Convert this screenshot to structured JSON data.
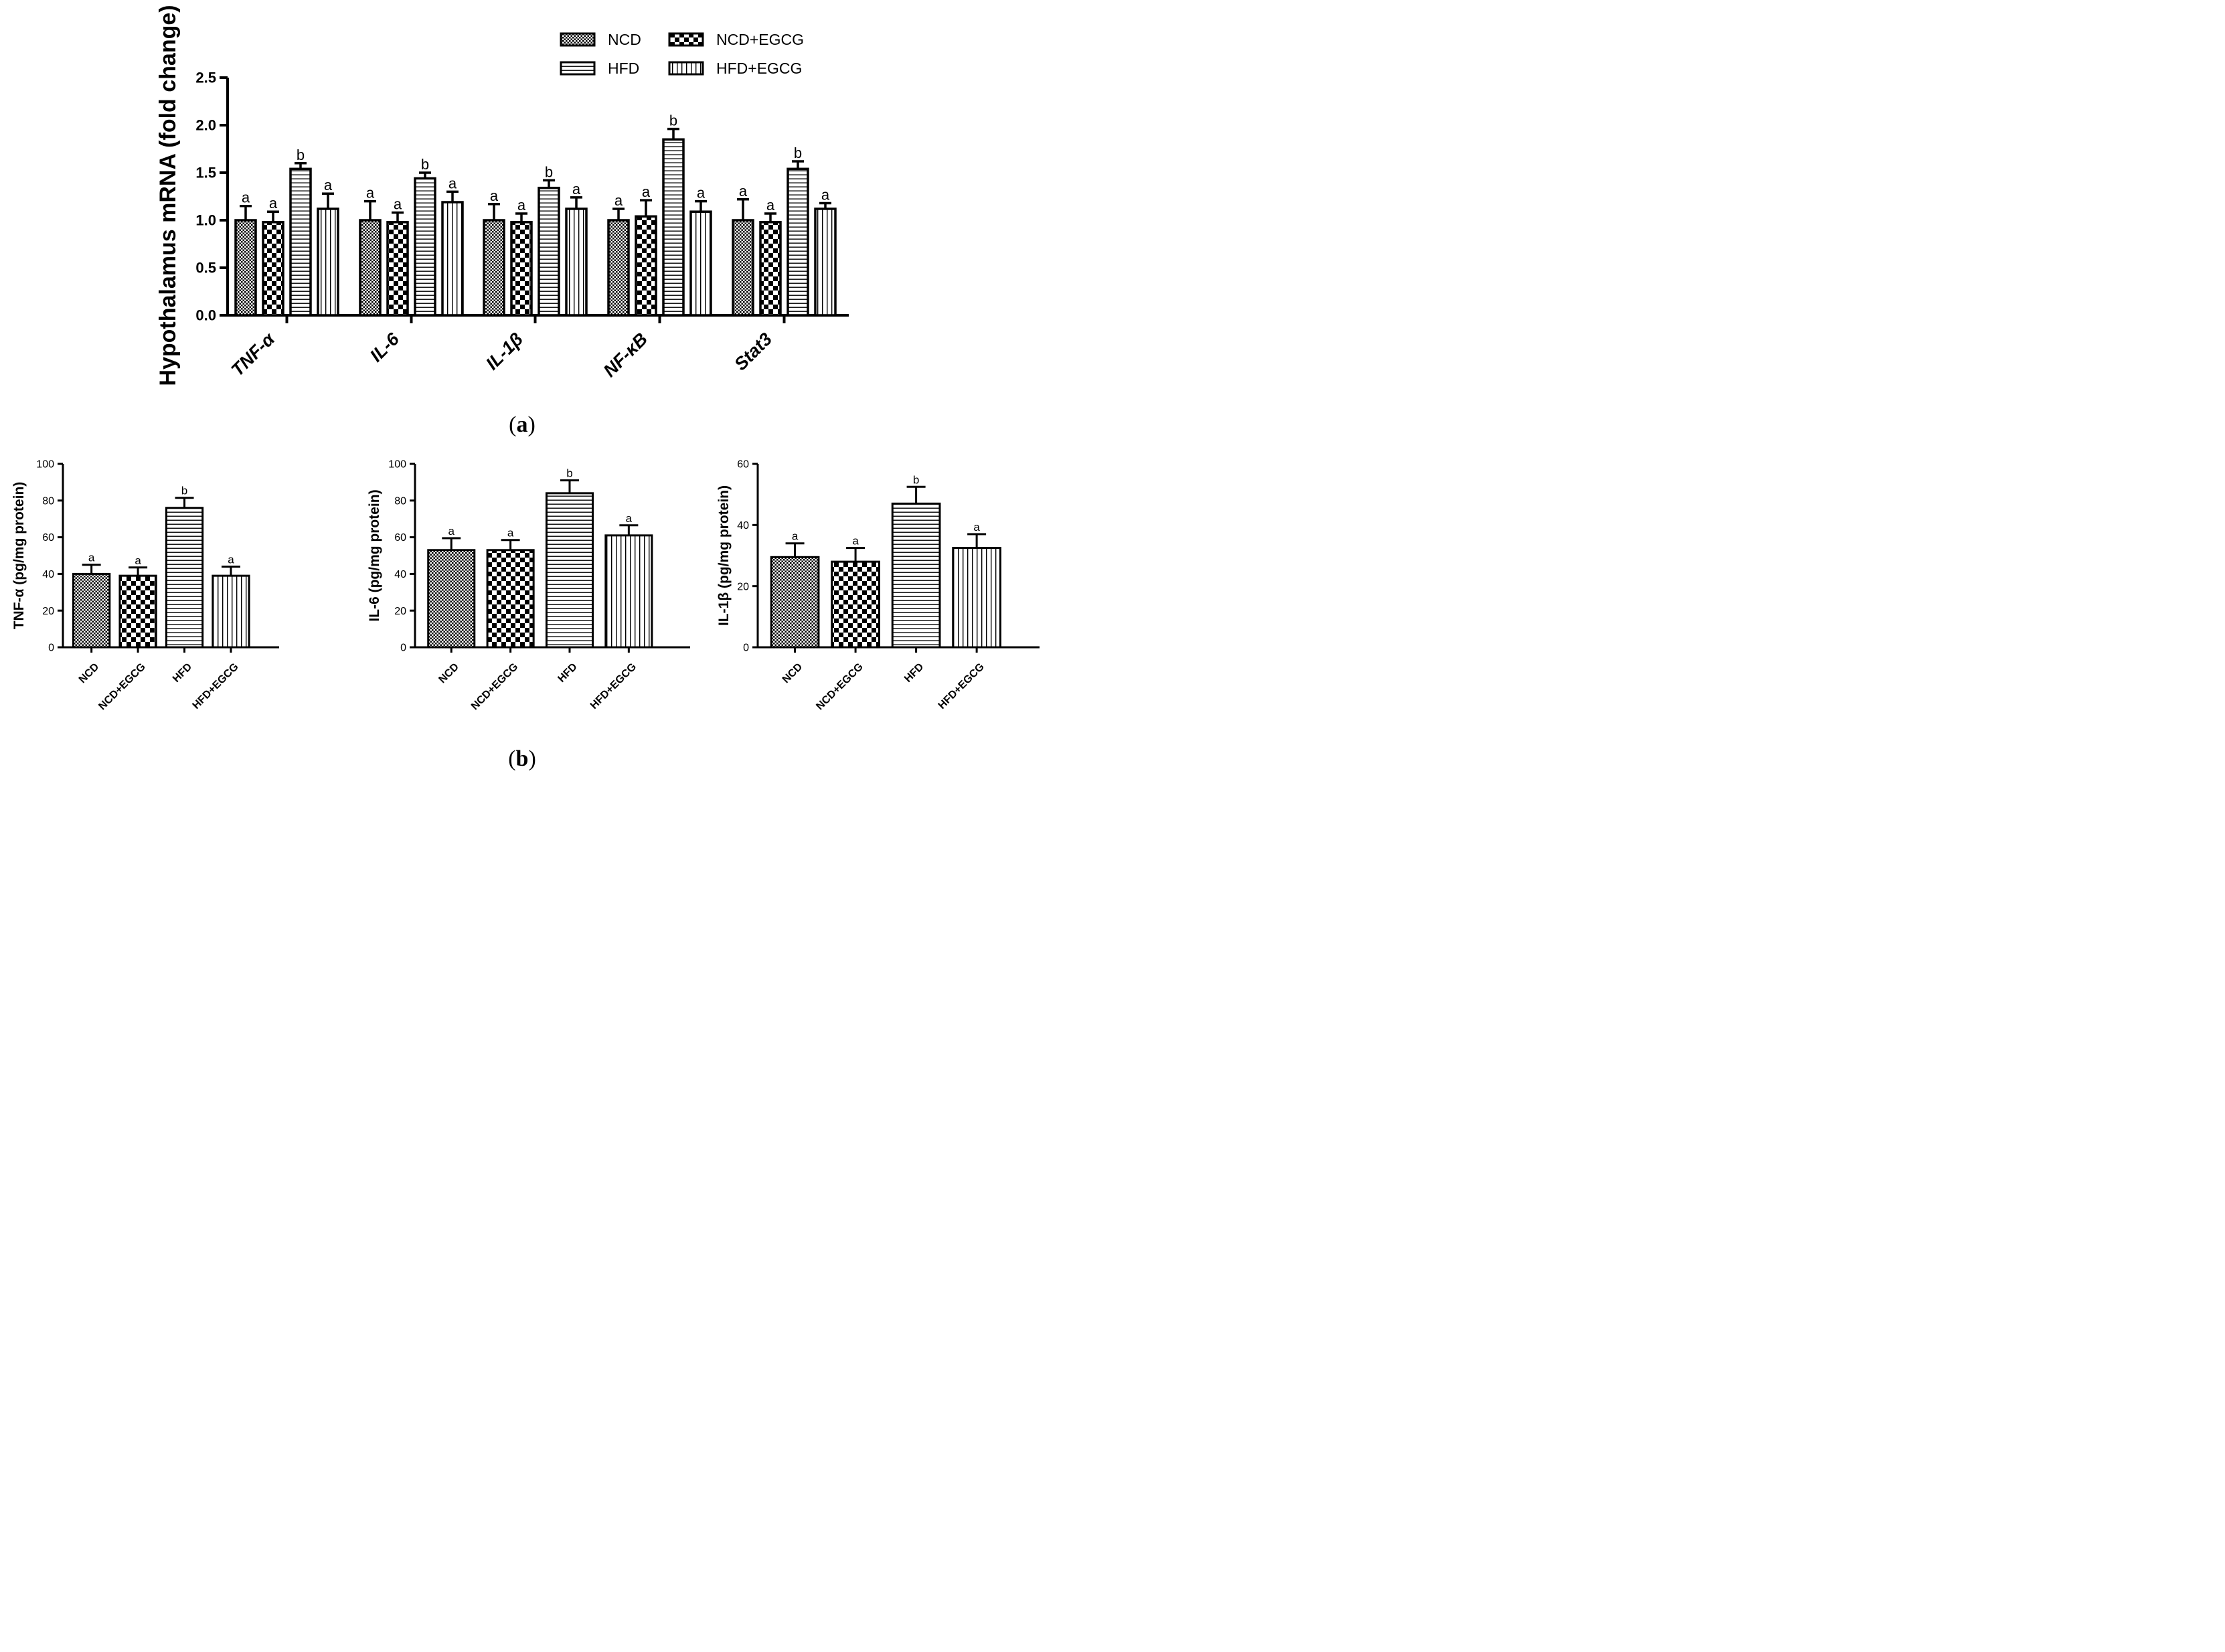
{
  "panel_labels": {
    "a": "a",
    "b": "b"
  },
  "colors": {
    "ink": "#000000",
    "background": "#ffffff"
  },
  "chart_data": [
    {
      "id": "a",
      "type": "bar",
      "ylabel": "Hypothalamus mRNA (fold change)",
      "xlabel": "",
      "ylim": [
        0,
        2.5
      ],
      "yticks": [
        "0.0",
        "0.5",
        "1.0",
        "1.5",
        "2.0",
        "2.5"
      ],
      "categories": [
        "TNF-α",
        "IL-6",
        "IL-1β",
        "NF-κB",
        "Stat3"
      ],
      "legend": {
        "position": "top-right",
        "entries": [
          "NCD",
          "NCD+EGCG",
          "HFD",
          "HFD+EGCG"
        ]
      },
      "series": [
        {
          "name": "NCD",
          "pattern": "checker",
          "values": [
            1.0,
            1.0,
            1.0,
            1.0,
            1.0
          ],
          "errors": [
            0.15,
            0.2,
            0.17,
            0.12,
            0.22
          ],
          "letters": [
            "a",
            "a",
            "a",
            "a",
            "a"
          ]
        },
        {
          "name": "NCD+EGCG",
          "pattern": "bigchecker",
          "values": [
            0.98,
            0.98,
            0.98,
            1.04,
            0.98
          ],
          "errors": [
            0.11,
            0.1,
            0.09,
            0.17,
            0.09
          ],
          "letters": [
            "a",
            "a",
            "a",
            "a",
            "a"
          ]
        },
        {
          "name": "HFD",
          "pattern": "hlines",
          "values": [
            1.54,
            1.44,
            1.34,
            1.85,
            1.54
          ],
          "errors": [
            0.06,
            0.06,
            0.08,
            0.11,
            0.08
          ],
          "letters": [
            "b",
            "b",
            "b",
            "b",
            "b"
          ]
        },
        {
          "name": "HFD+EGCG",
          "pattern": "vlines",
          "values": [
            1.12,
            1.19,
            1.12,
            1.09,
            1.12
          ],
          "errors": [
            0.16,
            0.11,
            0.12,
            0.11,
            0.06
          ],
          "letters": [
            "a",
            "a",
            "a",
            "a",
            "a"
          ]
        }
      ]
    },
    {
      "id": "b1",
      "type": "bar",
      "ylabel": "TNF-α  (pg/mg protein)",
      "xlabel": "",
      "ylim": [
        0,
        100
      ],
      "yticks": [
        "0",
        "20",
        "40",
        "60",
        "80",
        "100"
      ],
      "categories": [
        "NCD",
        "NCD+EGCG",
        "HFD",
        "HFD+EGCG"
      ],
      "patterns": [
        "checker",
        "bigchecker",
        "hlines",
        "vlines"
      ],
      "values": [
        40,
        39,
        76,
        39
      ],
      "errors": [
        5,
        4.5,
        5.5,
        5
      ],
      "letters": [
        "a",
        "a",
        "b",
        "a"
      ]
    },
    {
      "id": "b2",
      "type": "bar",
      "ylabel": "IL-6 (pg/mg protein)",
      "xlabel": "",
      "ylim": [
        0,
        100
      ],
      "yticks": [
        "0",
        "20",
        "40",
        "60",
        "80",
        "100"
      ],
      "categories": [
        "NCD",
        "NCD+EGCG",
        "HFD",
        "HFD+EGCG"
      ],
      "patterns": [
        "checker",
        "bigchecker",
        "hlines",
        "vlines"
      ],
      "values": [
        53,
        53,
        84,
        61
      ],
      "errors": [
        6.5,
        5.5,
        7,
        5.5
      ],
      "letters": [
        "a",
        "a",
        "b",
        "a"
      ]
    },
    {
      "id": "b3",
      "type": "bar",
      "ylabel": "IL-1β (pg/mg protein)",
      "xlabel": "",
      "ylim": [
        0,
        60
      ],
      "yticks": [
        "0",
        "20",
        "40",
        "60"
      ],
      "categories": [
        "NCD",
        "NCD+EGCG",
        "HFD",
        "HFD+EGCG"
      ],
      "patterns": [
        "checker",
        "bigchecker",
        "hlines",
        "vlines"
      ],
      "values": [
        29.5,
        28,
        47,
        32.5
      ],
      "errors": [
        4.5,
        4.5,
        5.5,
        4.5
      ],
      "letters": [
        "a",
        "a",
        "b",
        "a"
      ]
    }
  ]
}
